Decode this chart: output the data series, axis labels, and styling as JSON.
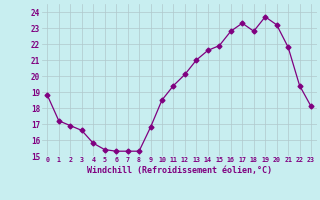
{
  "x": [
    0,
    1,
    2,
    3,
    4,
    5,
    6,
    7,
    8,
    9,
    10,
    11,
    12,
    13,
    14,
    15,
    16,
    17,
    18,
    19,
    20,
    21,
    22,
    23
  ],
  "y": [
    18.8,
    17.2,
    16.9,
    16.6,
    15.8,
    15.4,
    15.3,
    15.3,
    15.3,
    16.8,
    18.5,
    19.4,
    20.1,
    21.0,
    21.6,
    21.9,
    22.8,
    23.3,
    22.8,
    23.7,
    23.2,
    21.8,
    19.4,
    18.1
  ],
  "xlim": [
    -0.5,
    23.5
  ],
  "ylim": [
    15.0,
    24.5
  ],
  "yticks": [
    15,
    16,
    17,
    18,
    19,
    20,
    21,
    22,
    23,
    24
  ],
  "xtick_labels": [
    "0",
    "1",
    "2",
    "3",
    "4",
    "5",
    "6",
    "7",
    "8",
    "9",
    "10",
    "11",
    "12",
    "13",
    "14",
    "15",
    "16",
    "17",
    "18",
    "19",
    "20",
    "21",
    "22",
    "23"
  ],
  "xlabel": "Windchill (Refroidissement éolien,°C)",
  "line_color": "#800080",
  "marker": "D",
  "marker_size": 2.5,
  "background_color": "#c8eef0",
  "grid_color": "#b0c8cc",
  "label_color": "#800080"
}
